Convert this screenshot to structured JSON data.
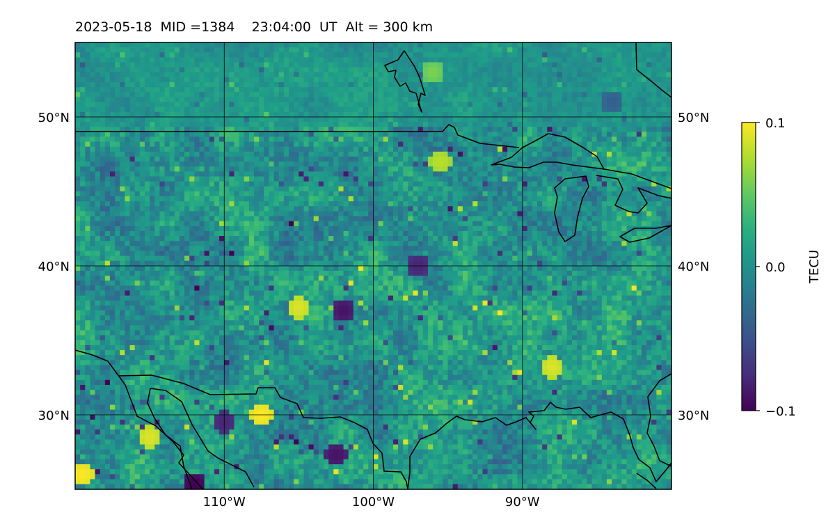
{
  "chart_data": {
    "type": "heatmap",
    "title": "2023-05-18  MID =1384    23:04:00  UT  Alt = 300 km",
    "map": {
      "lon_range": [
        -120,
        -80
      ],
      "lat_range": [
        25,
        55
      ],
      "grid_lons": [
        -110,
        -100,
        -90
      ],
      "grid_lats": [
        30,
        40,
        50
      ],
      "x_tick_labels": [
        "110°W",
        "100°W",
        "90°W"
      ],
      "y_tick_labels": [
        "30°N",
        "40°N",
        "50°N"
      ],
      "grid": true,
      "coastlines": true
    },
    "colorbar": {
      "label": "TECU",
      "colormap": "viridis",
      "range": [
        -0.1,
        0.1
      ],
      "tick_values": [
        0.1,
        0.0,
        -0.1
      ],
      "tick_labels": [
        "0.1",
        "0.0",
        "−0.1"
      ],
      "placement": "right"
    },
    "field_description_note": null,
    "features": {
      "high_values": [
        {
          "lon": -96.0,
          "lat": 53.0,
          "value": 0.06
        },
        {
          "lon": -119.5,
          "lat": 26.0,
          "value": 0.1
        },
        {
          "lon": -107.5,
          "lat": 30.0,
          "value": 0.1
        },
        {
          "lon": -115.0,
          "lat": 28.5,
          "value": 0.09
        },
        {
          "lon": -88.0,
          "lat": 33.2,
          "value": 0.09
        },
        {
          "lon": -95.5,
          "lat": 47.0,
          "value": 0.08
        },
        {
          "lon": -105.0,
          "lat": 37.2,
          "value": 0.09
        }
      ],
      "low_values": [
        {
          "lon": -102.0,
          "lat": 37.0,
          "value": -0.09
        },
        {
          "lon": -97.0,
          "lat": 40.0,
          "value": -0.08
        },
        {
          "lon": -112.0,
          "lat": 25.3,
          "value": -0.1
        },
        {
          "lon": -102.5,
          "lat": 27.3,
          "value": -0.09
        },
        {
          "lon": -84.0,
          "lat": 51.0,
          "value": -0.04
        },
        {
          "lon": -110.0,
          "lat": 29.5,
          "value": -0.08
        }
      ]
    }
  }
}
